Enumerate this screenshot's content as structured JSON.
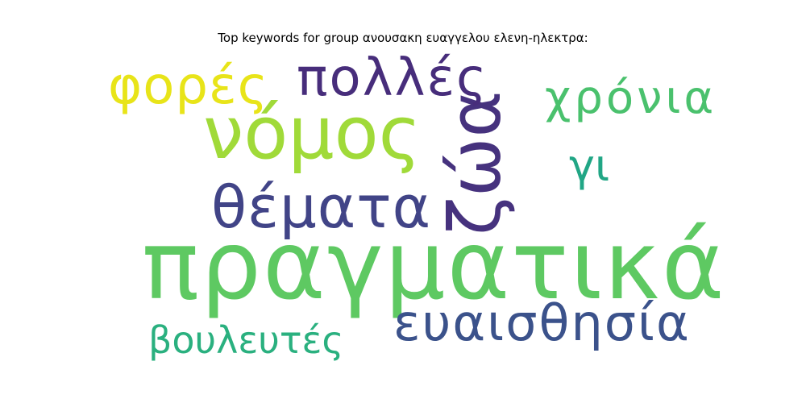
{
  "chart_data": {
    "type": "wordcloud",
    "title": "Top keywords for group ανουσακη ευαγγελου ελενη-ηλεκτρα:",
    "words": [
      {
        "text": "πραγματικά",
        "weight": 1.0,
        "color": "#5ec962"
      },
      {
        "text": "νόμος",
        "weight": 0.92,
        "color": "#a0da39"
      },
      {
        "text": "ζώα",
        "weight": 0.88,
        "color": "#46327e"
      },
      {
        "text": "ευαισθησία",
        "weight": 0.72,
        "color": "#3b528b"
      },
      {
        "text": "θέματα",
        "weight": 0.7,
        "color": "#414487"
      },
      {
        "text": "πολλές",
        "weight": 0.6,
        "color": "#472d7b"
      },
      {
        "text": "φορές",
        "weight": 0.58,
        "color": "#e8e419"
      },
      {
        "text": "χρόνια",
        "weight": 0.55,
        "color": "#4ac16d"
      },
      {
        "text": "γι",
        "weight": 0.45,
        "color": "#21a685"
      },
      {
        "text": "βουλευτές",
        "weight": 0.42,
        "color": "#2ab07f"
      }
    ]
  }
}
